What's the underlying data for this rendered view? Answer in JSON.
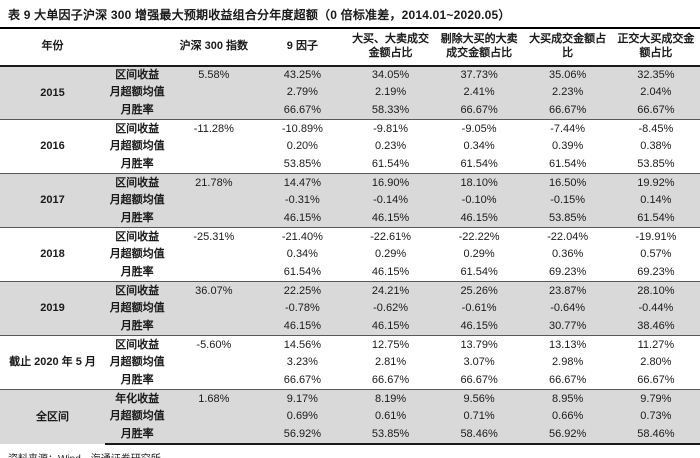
{
  "title": "表 9 大单因子沪深 300 增强最大预期收益组合分年度超额（0 倍标准差，2014.01~2020.05）",
  "source": "资料来源：Wind，海通证券研究所",
  "table": {
    "columns": [
      "年份",
      "",
      "沪深 300 指数",
      "9 因子",
      "大买、大卖成交金额占比",
      "剔除大买的大卖成交金额占比",
      "大买成交金额占比",
      "正交大买成交金额占比"
    ],
    "groups": [
      {
        "year": "2015",
        "shaded": true,
        "rows": [
          {
            "label": "区间收益",
            "values": [
              "5.58%",
              "43.25%",
              "34.05%",
              "37.73%",
              "35.06%",
              "32.35%"
            ]
          },
          {
            "label": "月超额均值",
            "values": [
              "",
              "2.79%",
              "2.19%",
              "2.41%",
              "2.23%",
              "2.04%"
            ]
          },
          {
            "label": "月胜率",
            "values": [
              "",
              "66.67%",
              "58.33%",
              "66.67%",
              "66.67%",
              "66.67%"
            ]
          }
        ]
      },
      {
        "year": "2016",
        "shaded": false,
        "rows": [
          {
            "label": "区间收益",
            "values": [
              "-11.28%",
              "-10.89%",
              "-9.81%",
              "-9.05%",
              "-7.44%",
              "-8.45%"
            ]
          },
          {
            "label": "月超额均值",
            "values": [
              "",
              "0.20%",
              "0.23%",
              "0.34%",
              "0.39%",
              "0.38%"
            ]
          },
          {
            "label": "月胜率",
            "values": [
              "",
              "53.85%",
              "61.54%",
              "61.54%",
              "61.54%",
              "53.85%"
            ]
          }
        ]
      },
      {
        "year": "2017",
        "shaded": true,
        "rows": [
          {
            "label": "区间收益",
            "values": [
              "21.78%",
              "14.47%",
              "16.90%",
              "18.10%",
              "16.50%",
              "19.92%"
            ]
          },
          {
            "label": "月超额均值",
            "values": [
              "",
              "-0.31%",
              "-0.14%",
              "-0.10%",
              "-0.15%",
              "0.14%"
            ]
          },
          {
            "label": "月胜率",
            "values": [
              "",
              "46.15%",
              "46.15%",
              "46.15%",
              "53.85%",
              "61.54%"
            ]
          }
        ]
      },
      {
        "year": "2018",
        "shaded": false,
        "rows": [
          {
            "label": "区间收益",
            "values": [
              "-25.31%",
              "-21.40%",
              "-22.61%",
              "-22.22%",
              "-22.04%",
              "-19.91%"
            ]
          },
          {
            "label": "月超额均值",
            "values": [
              "",
              "0.34%",
              "0.29%",
              "0.29%",
              "0.36%",
              "0.57%"
            ]
          },
          {
            "label": "月胜率",
            "values": [
              "",
              "61.54%",
              "46.15%",
              "61.54%",
              "69.23%",
              "69.23%"
            ]
          }
        ]
      },
      {
        "year": "2019",
        "shaded": true,
        "rows": [
          {
            "label": "区间收益",
            "values": [
              "36.07%",
              "22.25%",
              "24.21%",
              "25.26%",
              "23.87%",
              "28.10%"
            ]
          },
          {
            "label": "月超额均值",
            "values": [
              "",
              "-0.78%",
              "-0.62%",
              "-0.61%",
              "-0.64%",
              "-0.44%"
            ]
          },
          {
            "label": "月胜率",
            "values": [
              "",
              "46.15%",
              "46.15%",
              "46.15%",
              "30.77%",
              "38.46%"
            ]
          }
        ]
      },
      {
        "year": "截止 2020 年 5 月",
        "shaded": false,
        "rows": [
          {
            "label": "区间收益",
            "values": [
              "-5.60%",
              "14.56%",
              "12.75%",
              "13.79%",
              "13.13%",
              "11.27%"
            ]
          },
          {
            "label": "月超额均值",
            "values": [
              "",
              "3.23%",
              "2.81%",
              "3.07%",
              "2.98%",
              "2.80%"
            ]
          },
          {
            "label": "月胜率",
            "values": [
              "",
              "66.67%",
              "66.67%",
              "66.67%",
              "66.67%",
              "66.67%"
            ]
          }
        ]
      },
      {
        "year": "全区间",
        "shaded": true,
        "rows": [
          {
            "label": "年化收益",
            "values": [
              "1.68%",
              "9.17%",
              "8.19%",
              "9.56%",
              "8.95%",
              "9.79%"
            ]
          },
          {
            "label": "月超额均值",
            "values": [
              "",
              "0.69%",
              "0.61%",
              "0.71%",
              "0.66%",
              "0.73%"
            ]
          },
          {
            "label": "月胜率",
            "values": [
              "",
              "56.92%",
              "53.85%",
              "58.46%",
              "56.92%",
              "58.46%"
            ]
          }
        ]
      }
    ]
  }
}
